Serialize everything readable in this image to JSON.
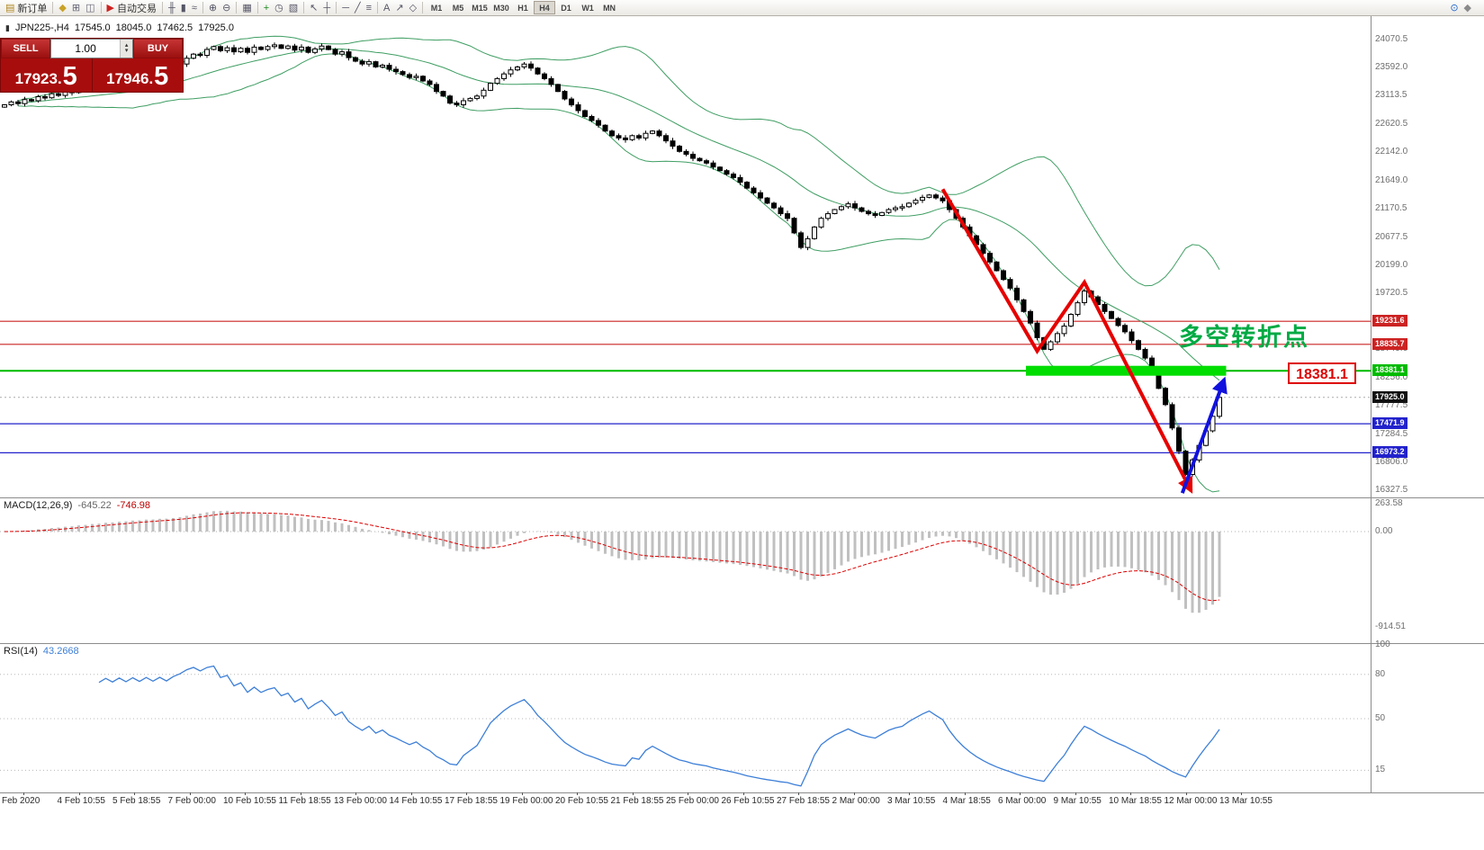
{
  "toolbar": {
    "groups": [
      {
        "items": [
          {
            "name": "new-order-button",
            "glyph": "▤",
            "glyph_color": "#b08820",
            "label": "新订单"
          }
        ]
      },
      {
        "items": [
          {
            "name": "chart-profiles-icon",
            "glyph": "◆",
            "glyph_color": "#c9a227"
          },
          {
            "name": "print-icon",
            "glyph": "⊞",
            "glyph_color": "#667"
          },
          {
            "name": "data-window-icon",
            "glyph": "◫",
            "glyph_color": "#667"
          }
        ]
      },
      {
        "items": [
          {
            "name": "auto-trading-button",
            "glyph": "▶",
            "glyph_color": "#cc2222",
            "label": "自动交易"
          }
        ]
      },
      {
        "items": [
          {
            "name": "bar-chart-icon",
            "glyph": "╫"
          },
          {
            "name": "candlestick-chart-icon",
            "glyph": "▮"
          },
          {
            "name": "line-chart-icon",
            "glyph": "≈"
          }
        ]
      },
      {
        "items": [
          {
            "name": "zoom-in-icon",
            "glyph": "⊕"
          },
          {
            "name": "zoom-out-icon",
            "glyph": "⊖"
          }
        ]
      },
      {
        "items": [
          {
            "name": "tile-windows-icon",
            "glyph": "▦"
          }
        ]
      },
      {
        "items": [
          {
            "name": "indicators-icon",
            "glyph": "+",
            "glyph_color": "#1d8a1d"
          },
          {
            "name": "time-periods-icon",
            "glyph": "◷"
          },
          {
            "name": "templates-icon",
            "glyph": "▧"
          }
        ]
      },
      {
        "items": [
          {
            "name": "cursor-icon",
            "glyph": "↖"
          },
          {
            "name": "crosshair-icon",
            "glyph": "┼"
          }
        ]
      },
      {
        "items": [
          {
            "name": "hline-tool-icon",
            "glyph": "─"
          },
          {
            "name": "trendline-tool-icon",
            "glyph": "╱"
          },
          {
            "name": "fibonacci-tool-icon",
            "glyph": "≡"
          }
        ]
      },
      {
        "items": [
          {
            "name": "text-tool-icon",
            "glyph": "A"
          },
          {
            "name": "arrow-tool-icon",
            "glyph": "↗"
          },
          {
            "name": "shapes-tool-icon",
            "glyph": "◇"
          }
        ]
      }
    ],
    "timeframes": {
      "items": [
        "M1",
        "M5",
        "M15",
        "M30",
        "H1",
        "H4",
        "D1",
        "W1",
        "MN"
      ],
      "active": "H4"
    },
    "right_icons": [
      {
        "name": "search-icon",
        "glyph": "⊙",
        "glyph_color": "#2266cc"
      },
      {
        "name": "favorites-icon",
        "glyph": "◆",
        "glyph_color": "#8a8a8a"
      }
    ]
  },
  "chart_title": {
    "icon": "▮",
    "symbol_period": "JPN225-,H4",
    "open": "17545.0",
    "high": "18045.0",
    "low": "17462.5",
    "close": "17925.0"
  },
  "trade_panel": {
    "sell_label": "SELL",
    "buy_label": "BUY",
    "volume": "1.00",
    "sell_price_base": "17923.",
    "sell_price_pip": "5",
    "buy_price_base": "17946.",
    "buy_price_pip": "5",
    "spin_up": "▴",
    "spin_down": "▾"
  },
  "chart_data": {
    "type": "candlestick",
    "symbol": "JPN225-",
    "timeframe": "H4",
    "ohlc": {
      "open": 17545.0,
      "high": 18045.0,
      "low": 17462.5,
      "close": 17925.0
    },
    "closes": [
      22950,
      23000,
      22970,
      23040,
      23020,
      23090,
      23070,
      23140,
      23110,
      23180,
      23160,
      23230,
      23210,
      23280,
      23260,
      23330,
      23310,
      23380,
      23360,
      23430,
      23410,
      23480,
      23460,
      23530,
      23510,
      23590,
      23650,
      23750,
      23820,
      23800,
      23900,
      23950,
      23880,
      23930,
      23860,
      23920,
      23850,
      23940,
      23900,
      23950,
      23980,
      23920,
      23960,
      23890,
      23940,
      23850,
      23910,
      23960,
      23900,
      23820,
      23860,
      23760,
      23700,
      23650,
      23690,
      23600,
      23630,
      23560,
      23520,
      23470,
      23420,
      23440,
      23360,
      23300,
      23180,
      23100,
      22980,
      22950,
      23020,
      23060,
      23100,
      23200,
      23320,
      23400,
      23480,
      23550,
      23600,
      23650,
      23580,
      23480,
      23400,
      23300,
      23180,
      23050,
      22950,
      22850,
      22750,
      22680,
      22600,
      22500,
      22420,
      22380,
      22350,
      22420,
      22380,
      22460,
      22500,
      22420,
      22330,
      22240,
      22150,
      22100,
      22030,
      21990,
      21950,
      21880,
      21820,
      21760,
      21700,
      21620,
      21520,
      21440,
      21350,
      21260,
      21180,
      21080,
      21000,
      20750,
      20500,
      20650,
      20850,
      21000,
      21080,
      21150,
      21200,
      21250,
      21180,
      21120,
      21080,
      21050,
      21100,
      21150,
      21180,
      21200,
      21260,
      21310,
      21360,
      21400,
      21350,
      21300,
      21150,
      21000,
      20850,
      20700,
      20550,
      20400,
      20250,
      20100,
      19950,
      19800,
      19600,
      19400,
      19200,
      18950,
      18750,
      18880,
      19020,
      19150,
      19350,
      19550,
      19750,
      19650,
      19520,
      19400,
      19280,
      19160,
      19050,
      18900,
      18750,
      18600,
      18350,
      18080,
      17800,
      17400,
      17000,
      16600,
      16850,
      17100,
      17350,
      17600,
      17925
    ],
    "indicators": {
      "bollinger": {
        "period": 20,
        "deviation": 2,
        "color": "#3f9e63"
      },
      "macd": {
        "name": "MACD(12,26,9)",
        "main_value": "-645.22",
        "signal_value": "-746.98",
        "axis_labels": [
          263.58,
          0.0,
          -914.51
        ],
        "histogram_color": "#c0c0c0",
        "signal_color": "#dd0000"
      },
      "rsi": {
        "name": "RSI(14)",
        "value": "43.2668",
        "levels": [
          100,
          80,
          50,
          15
        ],
        "color": "#3d7fd8"
      }
    },
    "hlines": [
      {
        "price": 19231.6,
        "label": "19231.6",
        "color": "#cc2222"
      },
      {
        "price": 18835.7,
        "label": "18835.7",
        "color": "#cc2222"
      },
      {
        "price": 18381.1,
        "label": "18381.1",
        "color": "#00bb00"
      },
      {
        "price": 17471.9,
        "label": "17471.9",
        "color": "#2222cc"
      },
      {
        "price": 16973.2,
        "label": "16973.2",
        "color": "#2222cc"
      }
    ],
    "current_price": {
      "value": 17925.0,
      "label": "17925.0",
      "color": "#111111"
    },
    "price_axis": [
      24070.5,
      23592.0,
      23113.5,
      22620.5,
      22142.0,
      21649.0,
      21170.5,
      20677.5,
      20199.0,
      19720.5,
      18749.0,
      18256.0,
      17777.5,
      17284.5,
      16806.0,
      16327.5
    ],
    "time_axis": [
      "Feb 2020",
      "4 Feb 10:55",
      "5 Feb 18:55",
      "7 Feb 00:00",
      "10 Feb 10:55",
      "11 Feb 18:55",
      "13 Feb 00:00",
      "14 Feb 10:55",
      "17 Feb 18:55",
      "19 Feb 00:00",
      "20 Feb 10:55",
      "21 Feb 18:55",
      "25 Feb 00:00",
      "26 Feb 10:55",
      "27 Feb 18:55",
      "2 Mar 00:00",
      "3 Mar 10:55",
      "4 Mar 18:55",
      "6 Mar 00:00",
      "9 Mar 10:55",
      "10 Mar 18:55",
      "12 Mar 00:00",
      "13 Mar 10:55"
    ],
    "annotations": {
      "support_zone": {
        "price": 18381.1,
        "from_index": 152,
        "to_index": 181,
        "color": "#00dd00"
      },
      "trend_zigzag": {
        "color": "#e60000",
        "points": [
          [
            139,
            21500
          ],
          [
            153,
            18720
          ],
          [
            160,
            19900
          ],
          [
            175.8,
            16320
          ]
        ]
      },
      "reversal_arrow": {
        "color": "#1111dd",
        "from": [
          174.5,
          16280
        ],
        "to": [
          180.7,
          18230
        ]
      },
      "pivot_label": {
        "text": "多空转折点",
        "color": "#00aa44",
        "anchor": [
          174,
          18820
        ]
      },
      "price_flag": {
        "text": "18381.1",
        "color": "#dd0000"
      }
    }
  }
}
